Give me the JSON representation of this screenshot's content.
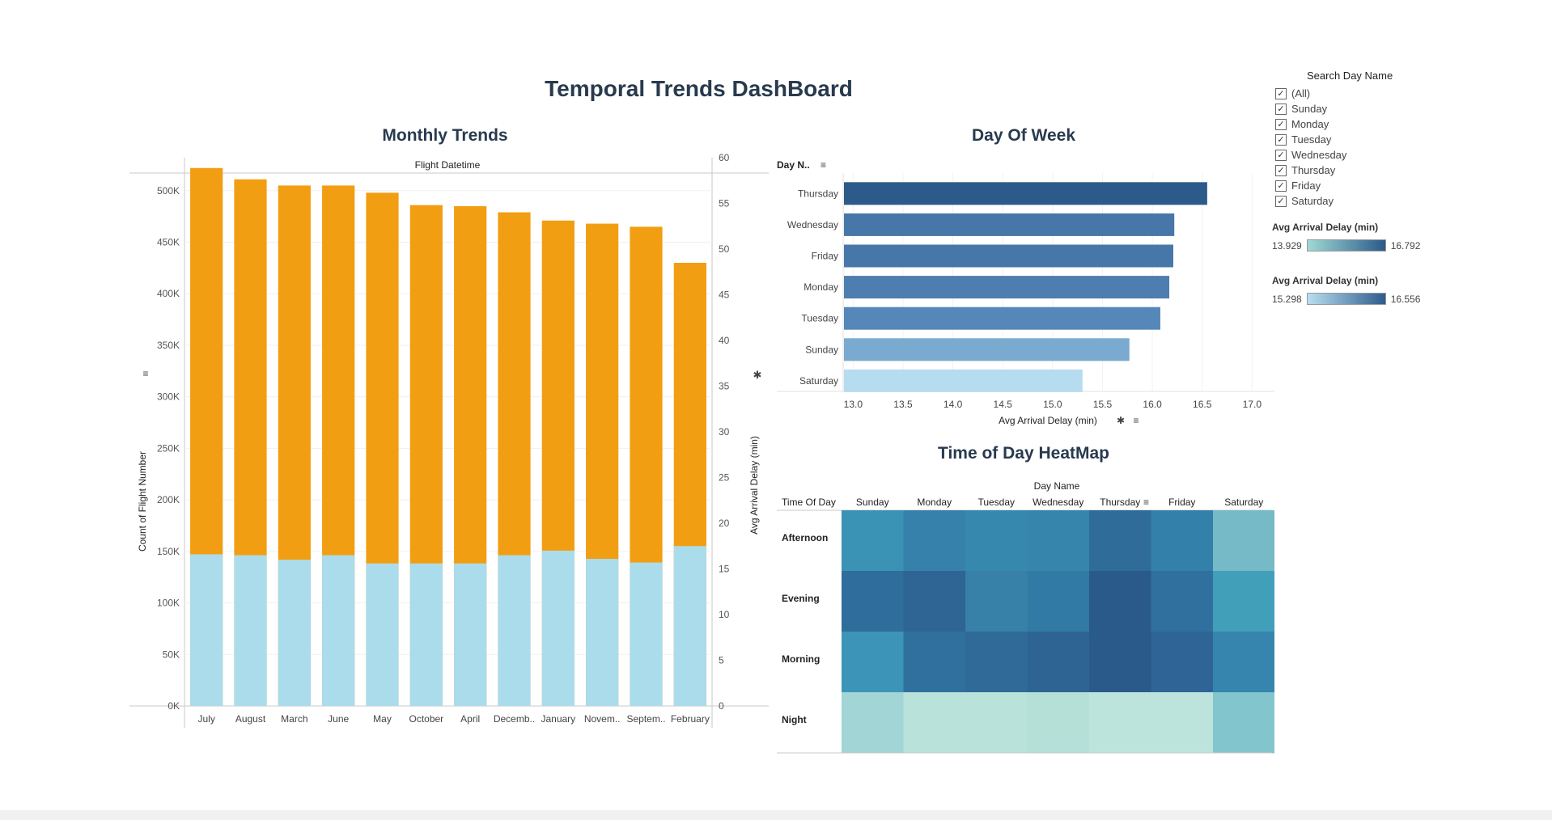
{
  "dashboard": {
    "title": "Temporal Trends DashBoard"
  },
  "monthly": {
    "title": "Monthly Trends",
    "header": "Flight Datetime",
    "y_label": "Count of Flight Number",
    "y2_label": "Avg Arrival Delay (min)",
    "y_ticks": [
      "0K",
      "50K",
      "100K",
      "150K",
      "200K",
      "250K",
      "300K",
      "350K",
      "400K",
      "450K",
      "500K"
    ],
    "y2_ticks": [
      "0",
      "5",
      "10",
      "15",
      "20",
      "25",
      "30",
      "35",
      "40",
      "45",
      "50",
      "55",
      "60"
    ]
  },
  "dow": {
    "title": "Day Of Week",
    "header": "Day N..",
    "x_label": "Avg Arrival Delay (min)",
    "x_ticks": [
      "13.0",
      "13.5",
      "14.0",
      "14.5",
      "15.0",
      "15.5",
      "16.0",
      "16.5",
      "17.0"
    ]
  },
  "heatmap": {
    "title": "Time of Day HeatMap",
    "col_header": "Day Name",
    "row_header": "Time Of Day"
  },
  "filter": {
    "title": "Search Day Name",
    "items": [
      "(All)",
      "Sunday",
      "Monday",
      "Tuesday",
      "Wednesday",
      "Thursday",
      "Friday",
      "Saturday"
    ]
  },
  "legends": [
    {
      "title": "Avg Arrival Delay (min)",
      "min": "13.929",
      "max": "16.792",
      "from": "#9fd9d4",
      "to": "#2a5a8a"
    },
    {
      "title": "Avg Arrival Delay (min)",
      "min": "15.298",
      "max": "16.556",
      "from": "#b9def0",
      "to": "#2d5b8c"
    }
  ],
  "chart_data": [
    {
      "type": "bar",
      "title": "Monthly Trends",
      "xlabel": "Flight Datetime",
      "ylabel": "Count of Flight Number",
      "y2label": "Avg Arrival Delay (min)",
      "categories": [
        "July",
        "August",
        "March",
        "June",
        "May",
        "October",
        "April",
        "Decemb..",
        "January",
        "Novem..",
        "Septem..",
        "February"
      ],
      "series": [
        {
          "name": "Count of Flight Number",
          "color": "#f29e12",
          "values": [
            522000,
            511000,
            505000,
            505000,
            498000,
            486000,
            485000,
            479000,
            471000,
            468000,
            465000,
            430000
          ]
        },
        {
          "name": "Avg Arrival Delay (min)",
          "color": "#abdcec",
          "axis": "right",
          "values": [
            16.6,
            16.5,
            16.0,
            16.5,
            15.6,
            15.6,
            15.6,
            16.5,
            17.0,
            16.1,
            15.7,
            17.5
          ]
        }
      ],
      "ylim": [
        0,
        532000
      ],
      "y2lim": [
        0,
        60
      ]
    },
    {
      "type": "bar",
      "orientation": "horizontal",
      "title": "Day Of Week",
      "xlabel": "Avg Arrival Delay (min)",
      "ylabel": "Day Name",
      "categories": [
        "Thursday",
        "Wednesday",
        "Friday",
        "Monday",
        "Tuesday",
        "Sunday",
        "Saturday"
      ],
      "values": [
        16.55,
        16.22,
        16.21,
        16.17,
        16.08,
        15.77,
        15.3
      ],
      "colors": [
        "#2c5a8a",
        "#4677a8",
        "#4677a8",
        "#4d7eaf",
        "#5588b8",
        "#7aaacf",
        "#b6dcf0"
      ],
      "xlim": [
        12.9,
        17.2
      ]
    },
    {
      "type": "heatmap",
      "title": "Time of Day HeatMap",
      "xlabel": "Day Name",
      "ylabel": "Time Of Day",
      "columns": [
        "Sunday",
        "Monday",
        "Tuesday",
        "Wednesday",
        "Thursday",
        "Friday",
        "Saturday"
      ],
      "rows": [
        "Afternoon",
        "Evening",
        "Morning",
        "Night"
      ],
      "colors": [
        [
          "#3a92b5",
          "#3581ab",
          "#3788ae",
          "#3585ad",
          "#2f6c9a",
          "#3380ab",
          "#75bac6"
        ],
        [
          "#2f6d9c",
          "#2e6595",
          "#3780a7",
          "#327aa6",
          "#2a5a8a",
          "#30709f",
          "#419fba"
        ],
        [
          "#3c95b8",
          "#30709f",
          "#2f6a99",
          "#2e6494",
          "#2a5a8a",
          "#2e6596",
          "#3585ae"
        ],
        [
          "#a2d5d5",
          "#b8e2da",
          "#b8e2da",
          "#b4e0d8",
          "#bce4dc",
          "#bce4dc",
          "#83c5cd"
        ]
      ]
    }
  ]
}
